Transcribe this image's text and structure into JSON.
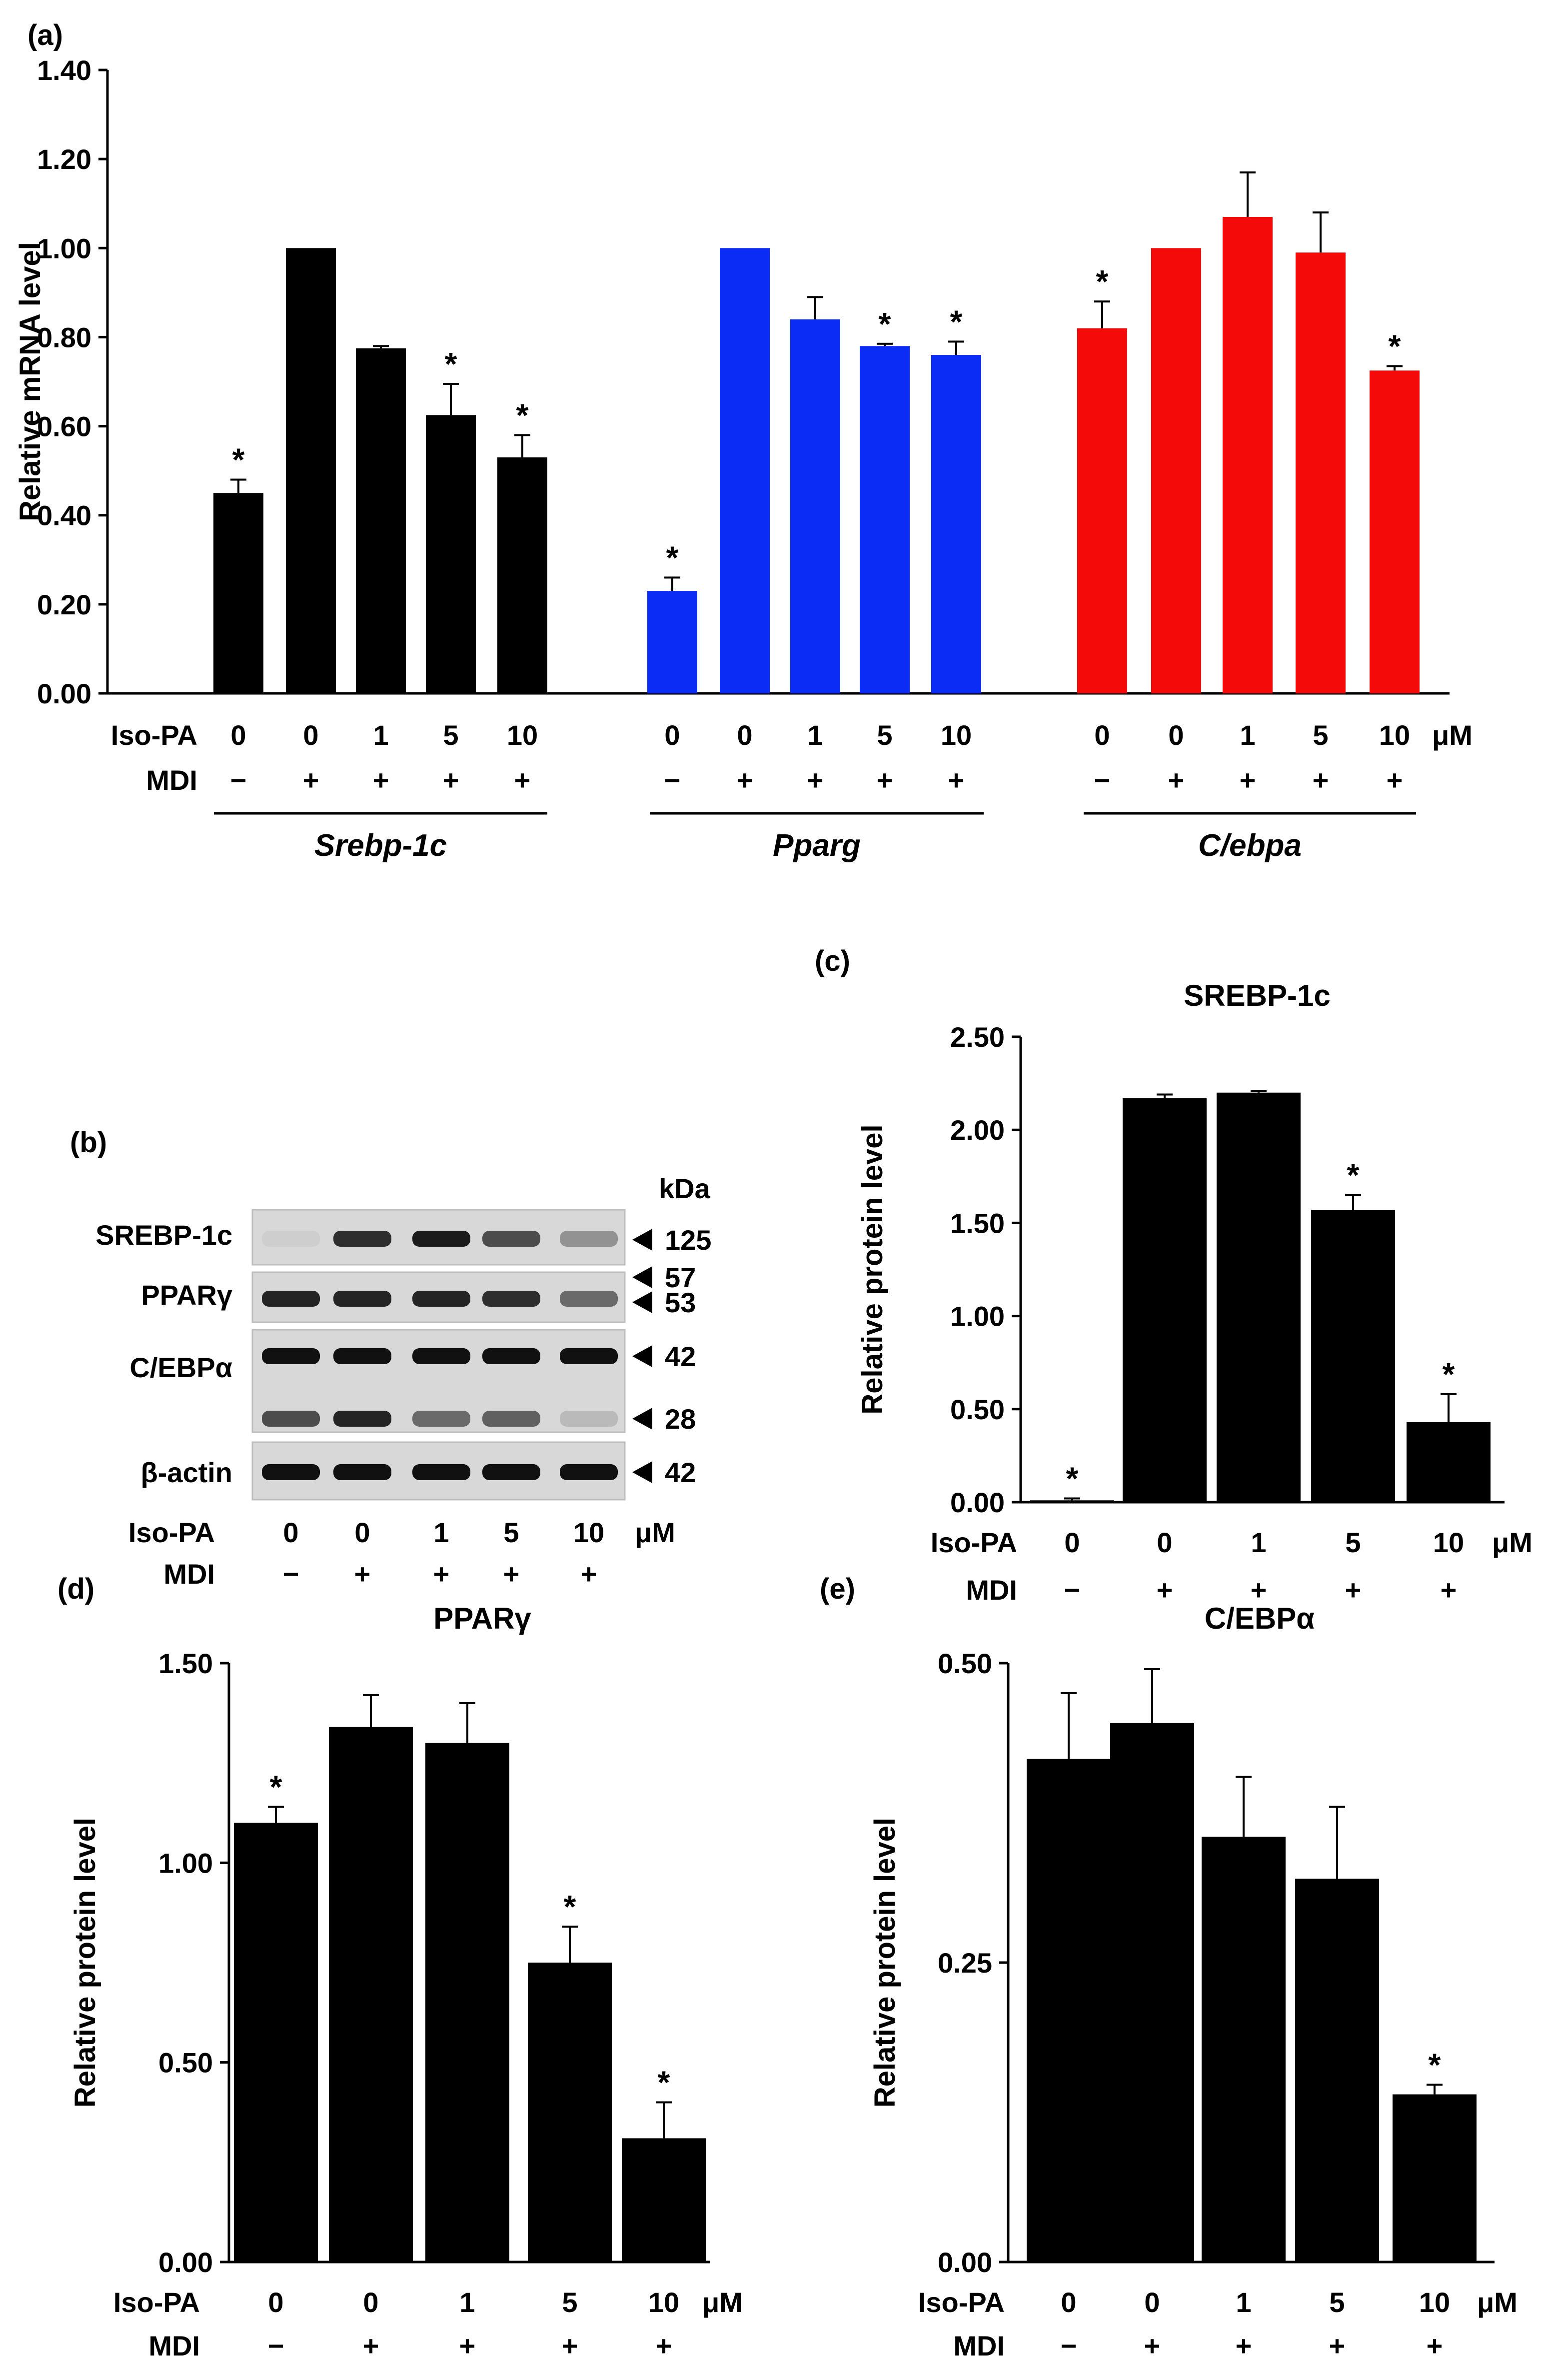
{
  "chart_data": [
    {
      "panel": "(a)",
      "type": "bar",
      "title": "",
      "ylabel": "Relative mRNA level",
      "ylim": [
        0,
        1.4
      ],
      "yticks": [
        "0.00",
        "0.20",
        "0.40",
        "0.60",
        "0.80",
        "1.00",
        "1.20",
        "1.40"
      ],
      "iso_label": "Iso-PA",
      "mdi_label": "MDI",
      "unit": "μM",
      "groups": [
        {
          "name": "Srebp-1c",
          "color": "#000000",
          "iso": [
            "0",
            "0",
            "1",
            "5",
            "10"
          ],
          "mdi": [
            "−",
            "+",
            "+",
            "+",
            "+"
          ],
          "values": [
            0.45,
            1.0,
            0.775,
            0.625,
            0.53
          ],
          "errors": [
            0.03,
            0.0,
            0.005,
            0.07,
            0.05
          ],
          "sig": [
            true,
            false,
            false,
            true,
            true
          ]
        },
        {
          "name": "Pparg",
          "color": "#0a2cf5",
          "iso": [
            "0",
            "0",
            "1",
            "5",
            "10"
          ],
          "mdi": [
            "−",
            "+",
            "+",
            "+",
            "+"
          ],
          "values": [
            0.23,
            1.0,
            0.84,
            0.78,
            0.76
          ],
          "errors": [
            0.03,
            0.0,
            0.05,
            0.005,
            0.03
          ],
          "sig": [
            true,
            false,
            false,
            true,
            true
          ]
        },
        {
          "name": "C/ebpa",
          "color": "#f50a0a",
          "iso": [
            "0",
            "0",
            "1",
            "5",
            "10"
          ],
          "mdi": [
            "−",
            "+",
            "+",
            "+",
            "+"
          ],
          "values": [
            0.82,
            1.0,
            1.07,
            0.99,
            0.725
          ],
          "errors": [
            0.06,
            0.0,
            0.1,
            0.09,
            0.01
          ],
          "sig": [
            true,
            false,
            false,
            false,
            true
          ]
        }
      ]
    },
    {
      "panel": "(c)",
      "type": "bar",
      "title": "SREBP-1c",
      "ylabel": "Relative protein level",
      "ylim": [
        0,
        2.5
      ],
      "yticks": [
        "0.00",
        "0.50",
        "1.00",
        "1.50",
        "2.00",
        "2.50"
      ],
      "iso_label": "Iso-PA",
      "mdi_label": "MDI",
      "unit": "μM",
      "iso": [
        "0",
        "0",
        "1",
        "5",
        "10"
      ],
      "mdi": [
        "−",
        "+",
        "+",
        "+",
        "+"
      ],
      "values": [
        0.01,
        2.17,
        2.2,
        1.57,
        0.43
      ],
      "errors": [
        0.01,
        0.02,
        0.01,
        0.08,
        0.15
      ],
      "sig": [
        true,
        false,
        false,
        true,
        true
      ]
    },
    {
      "panel": "(d)",
      "type": "bar",
      "title": "PPARγ",
      "ylabel": "Relative protein level",
      "ylim": [
        0,
        1.5
      ],
      "yticks": [
        "0.00",
        "0.50",
        "1.00",
        "1.50"
      ],
      "iso_label": "Iso-PA",
      "mdi_label": "MDI",
      "unit": "μM",
      "iso": [
        "0",
        "0",
        "1",
        "5",
        "10"
      ],
      "mdi": [
        "−",
        "+",
        "+",
        "+",
        "+"
      ],
      "values": [
        1.1,
        1.34,
        1.3,
        0.75,
        0.31
      ],
      "errors": [
        0.04,
        0.08,
        0.1,
        0.09,
        0.09
      ],
      "sig": [
        true,
        false,
        false,
        true,
        true
      ]
    },
    {
      "panel": "(e)",
      "type": "bar",
      "title": "C/EBPα",
      "ylabel": "Relative protein level",
      "ylim": [
        0,
        0.5
      ],
      "yticks": [
        "0.00",
        "0.25",
        "0.50"
      ],
      "iso_label": "Iso-PA",
      "mdi_label": "MDI",
      "unit": "μM",
      "iso": [
        "0",
        "0",
        "1",
        "5",
        "10"
      ],
      "mdi": [
        "−",
        "+",
        "+",
        "+",
        "+"
      ],
      "values": [
        0.42,
        0.45,
        0.355,
        0.32,
        0.14
      ],
      "errors": [
        0.055,
        0.045,
        0.05,
        0.06,
        0.008
      ],
      "sig": [
        false,
        false,
        false,
        false,
        true
      ]
    }
  ],
  "blot": {
    "panel": "(b)",
    "kda_label": "kDa",
    "rows": [
      {
        "label": "SREBP-1c",
        "markers": [
          "125"
        ]
      },
      {
        "label": "PPARγ",
        "markers": [
          "57",
          "53"
        ]
      },
      {
        "label": "C/EBPα",
        "markers": [
          "42",
          "28"
        ]
      },
      {
        "label": "β-actin",
        "markers": [
          "42"
        ]
      }
    ],
    "iso_label": "Iso-PA",
    "mdi_label": "MDI",
    "unit": "μM",
    "iso": [
      "0",
      "0",
      "1",
      "5",
      "10"
    ],
    "mdi": [
      "−",
      "+",
      "+",
      "+",
      "+"
    ]
  }
}
